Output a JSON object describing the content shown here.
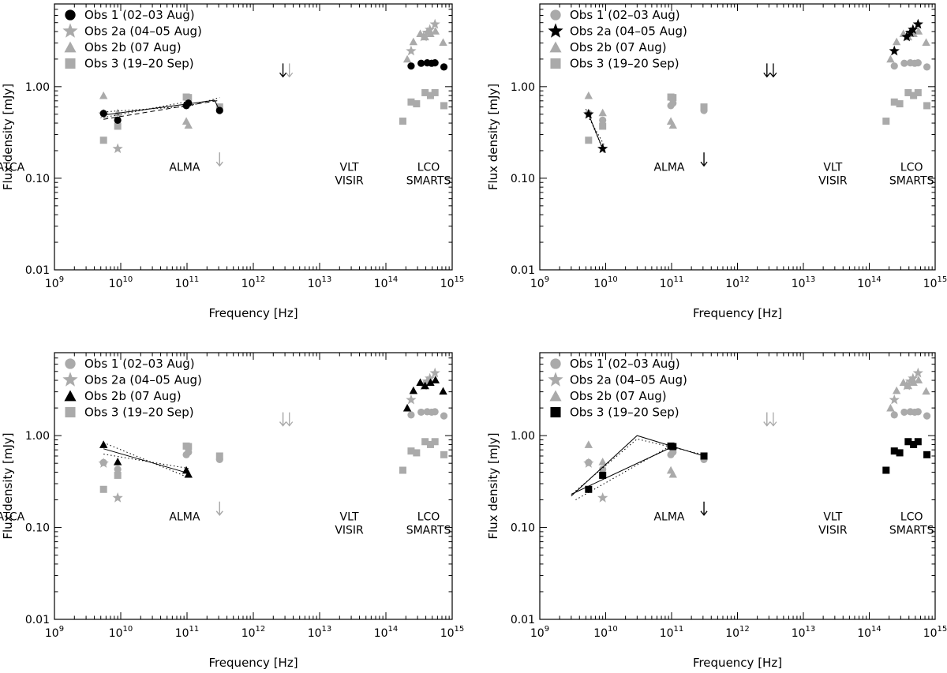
{
  "figure": {
    "xlabel": "Frequency [Hz]",
    "ylabel": "Flux density [mJy]",
    "xtick_labels": [
      {
        "base": "10",
        "exp": "9"
      },
      {
        "base": "10",
        "exp": "10"
      },
      {
        "base": "10",
        "exp": "11"
      },
      {
        "base": "10",
        "exp": "12"
      },
      {
        "base": "10",
        "exp": "13"
      },
      {
        "base": "10",
        "exp": "14"
      },
      {
        "base": "10",
        "exp": "15"
      }
    ],
    "ytick_labels": [
      "0.01",
      "0.10",
      "1.00"
    ],
    "annotations": [
      {
        "lines": [
          "ATCA"
        ],
        "x": 9.3,
        "y": 0.12
      },
      {
        "lines": [
          "ALMA"
        ],
        "x": 92000000000,
        "y": 0.12
      },
      {
        "lines": [
          "VLT",
          "VISIR"
        ],
        "x": 28000000000000,
        "y": 0.12
      },
      {
        "lines": [
          "LCO",
          "SMARTS"
        ],
        "x": 440000000000000,
        "y": 0.12
      }
    ],
    "legend_labels": [
      "Obs 1 (02–03 Aug)",
      "Obs 2a (04–05 Aug)",
      "Obs 2b (07 Aug)",
      "Obs 3 (19–20 Sep)"
    ],
    "colors": {
      "highlight": "#000000",
      "background_series": "#aaaaaa"
    }
  },
  "chart_data": [
    {
      "type": "scatter",
      "panel": "top-left",
      "highlight_series": 0,
      "xscale": "log",
      "yscale": "log",
      "xlim": [
        1000000000,
        1000000000000000
      ],
      "ylim": [
        0.01,
        8
      ],
      "legend_position": "top-left"
    },
    {
      "type": "scatter",
      "panel": "top-right",
      "highlight_series": 1,
      "xscale": "log",
      "yscale": "log",
      "xlim": [
        1000000000,
        1000000000000000
      ],
      "ylim": [
        0.01,
        8
      ],
      "legend_position": "top-left"
    },
    {
      "type": "scatter",
      "panel": "bottom-left",
      "highlight_series": 2,
      "xscale": "log",
      "yscale": "log",
      "xlim": [
        1000000000,
        1000000000000000
      ],
      "ylim": [
        0.01,
        8
      ],
      "legend_position": "top-left"
    },
    {
      "type": "scatter",
      "panel": "bottom-right",
      "highlight_series": 3,
      "xscale": "log",
      "yscale": "log",
      "xlim": [
        1000000000,
        1000000000000000
      ],
      "ylim": [
        0.01,
        8
      ],
      "legend_position": "top-left"
    }
  ],
  "series": [
    {
      "name": "Obs 1 (02–03 Aug)",
      "marker": "circle",
      "points": [
        [
          5500000000,
          0.51
        ],
        [
          9000000000,
          0.43
        ],
        [
          97500000000,
          0.62
        ],
        [
          105000000000,
          0.66
        ],
        [
          310000000000,
          0.55
        ],
        [
          240000000000000,
          1.68
        ],
        [
          340000000000000,
          1.8
        ],
        [
          420000000000000,
          1.82
        ],
        [
          490000000000000,
          1.8
        ],
        [
          550000000000000,
          1.82
        ],
        [
          750000000000000,
          1.64
        ]
      ],
      "upper_limits": [
        [
          2800000000000,
          1.5
        ]
      ],
      "fit_lines": [
        {
          "style": "solid",
          "points": [
            [
              5500000000,
              0.49
            ],
            [
              105000000000,
              0.65
            ]
          ]
        },
        {
          "style": "solid",
          "points": [
            [
              105000000000,
              0.65
            ],
            [
              260000000000,
              0.71
            ],
            [
              310000000000,
              0.55
            ]
          ]
        },
        {
          "style": "dotted",
          "points": [
            [
              5500000000,
              0.53
            ],
            [
              105000000000,
              0.61
            ],
            [
              310000000000,
              0.76
            ]
          ]
        },
        {
          "style": "dotted",
          "points": [
            [
              5500000000,
              0.46
            ],
            [
              105000000000,
              0.69
            ]
          ]
        },
        {
          "style": "dashed",
          "points": [
            [
              5500000000,
              0.44
            ],
            [
              310000000000,
              0.71
            ]
          ]
        }
      ]
    },
    {
      "name": "Obs 2a (04–05 Aug)",
      "marker": "star",
      "points": [
        [
          5500000000,
          0.5
        ],
        [
          9000000000,
          0.21
        ],
        [
          240000000000000,
          2.45
        ],
        [
          370000000000000,
          3.5
        ],
        [
          420000000000000,
          3.9
        ],
        [
          460000000000000,
          4.2
        ],
        [
          550000000000000,
          4.8
        ]
      ],
      "upper_limits": [
        [
          2800000000000,
          1.5
        ],
        [
          3500000000000,
          1.5
        ],
        [
          310000000000,
          0.16
        ]
      ],
      "fit_lines": [
        {
          "style": "solid",
          "points": [
            [
              5500000000,
              0.5
            ],
            [
              9000000000,
              0.21
            ]
          ]
        },
        {
          "style": "dotted",
          "points": [
            [
              5000000000,
              0.57
            ],
            [
              9500000000,
              0.19
            ]
          ]
        },
        {
          "style": "dotted",
          "points": [
            [
              5000000000,
              0.52
            ],
            [
              9500000000,
              0.23
            ]
          ]
        }
      ]
    },
    {
      "name": "Obs 2b (07 Aug)",
      "marker": "triangle",
      "points": [
        [
          5500000000,
          0.8
        ],
        [
          9000000000,
          0.52
        ],
        [
          97500000000,
          0.42
        ],
        [
          105000000000,
          0.38
        ],
        [
          210000000000000,
          2.0
        ],
        [
          260000000000000,
          3.1
        ],
        [
          330000000000000,
          3.8
        ],
        [
          390000000000000,
          3.5
        ],
        [
          470000000000000,
          3.8
        ],
        [
          560000000000000,
          4.05
        ],
        [
          730000000000000,
          3.05
        ]
      ],
      "upper_limits": [],
      "fit_lines": [
        {
          "style": "solid",
          "points": [
            [
              5500000000,
              0.72
            ],
            [
              105000000000,
              0.39
            ]
          ]
        },
        {
          "style": "dotted",
          "points": [
            [
              5500000000,
              0.84
            ],
            [
              105000000000,
              0.35
            ]
          ]
        },
        {
          "style": "dotted",
          "points": [
            [
              5500000000,
              0.63
            ],
            [
              105000000000,
              0.44
            ]
          ]
        }
      ]
    },
    {
      "name": "Obs 3 (19–20 Sep)",
      "marker": "square",
      "points": [
        [
          5500000000,
          0.26
        ],
        [
          9000000000,
          0.37
        ],
        [
          97500000000,
          0.77
        ],
        [
          105000000000,
          0.76
        ],
        [
          310000000000,
          0.6
        ],
        [
          180000000000000,
          0.42
        ],
        [
          240000000000000,
          0.68
        ],
        [
          290000000000000,
          0.65
        ],
        [
          390000000000000,
          0.86
        ],
        [
          470000000000000,
          0.8
        ],
        [
          550000000000000,
          0.86
        ],
        [
          750000000000000,
          0.62
        ]
      ],
      "upper_limits": [
        [
          310000000000,
          0.16
        ]
      ],
      "fit_lines": [
        {
          "style": "solid",
          "points": [
            [
              3000000000,
              0.22
            ],
            [
              30000000000,
              1.0
            ],
            [
              310000000000,
              0.6
            ]
          ]
        },
        {
          "style": "solid",
          "points": [
            [
              3000000000,
              0.23
            ],
            [
              105000000000,
              0.76
            ]
          ]
        },
        {
          "style": "dotted",
          "points": [
            [
              3500000000,
              0.2
            ],
            [
              105000000000,
              0.8
            ]
          ]
        },
        {
          "style": "dotted",
          "points": [
            [
              3500000000,
              0.25
            ],
            [
              30000000000,
              0.92
            ],
            [
              310000000000,
              0.62
            ]
          ]
        }
      ]
    }
  ]
}
